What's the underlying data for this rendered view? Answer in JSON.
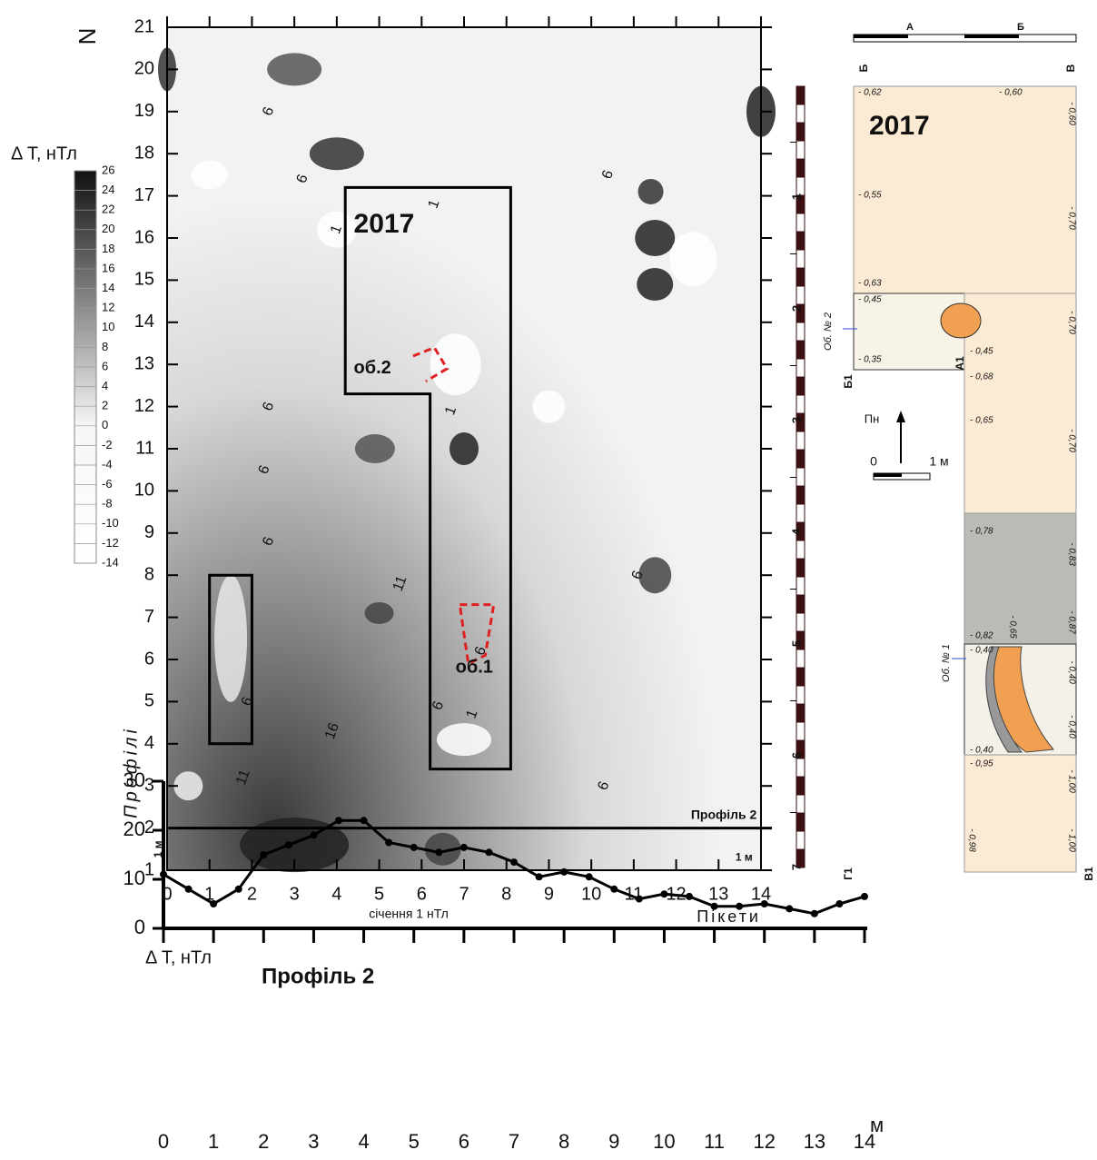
{
  "chart_data": [
    {
      "type": "contour",
      "x_label": "Пікети",
      "y_label": "Профілі",
      "note": "січення 1 нТл",
      "north": "N",
      "xlim": [
        0,
        14
      ],
      "ylim": [
        1,
        21
      ],
      "xticks": [
        0,
        1,
        2,
        3,
        4,
        5,
        6,
        7,
        8,
        9,
        10,
        11,
        12,
        13,
        14
      ],
      "yticks": [
        1,
        2,
        3,
        4,
        5,
        6,
        7,
        8,
        9,
        10,
        11,
        12,
        13,
        14,
        15,
        16,
        17,
        18,
        19,
        20,
        21
      ],
      "annotations": [
        "2017",
        "об.2",
        "об.1",
        "Профіль 2",
        "1 м",
        "1 м"
      ],
      "contour_labels": [
        "6",
        "1",
        "1",
        "6",
        "6",
        "6",
        "6",
        "11",
        "16",
        "11",
        "6",
        "6",
        "1",
        "6",
        "1",
        "6",
        "6",
        "6"
      ],
      "scale_ticks": [
        1,
        2,
        3,
        4,
        5,
        6,
        7
      ]
    },
    {
      "type": "colorbar",
      "title": "Δ T, нТл",
      "ticks": [
        26,
        24,
        22,
        20,
        18,
        16,
        14,
        12,
        10,
        8,
        6,
        4,
        2,
        0,
        -2,
        -4,
        -6,
        -8,
        -10,
        -12,
        -14
      ]
    },
    {
      "type": "line",
      "title": "Профіль 2",
      "y_label": "Δ T, нТл",
      "x_unit": "м",
      "color": "#000000",
      "x": [
        0,
        0.5,
        1,
        1.5,
        2,
        2.5,
        3,
        3.5,
        4,
        4.5,
        5,
        5.5,
        6,
        6.5,
        7,
        7.5,
        8,
        8.5,
        9,
        9.5,
        10,
        10.5,
        11,
        11.5,
        12,
        12.5,
        13,
        13.5,
        14
      ],
      "values": [
        11,
        8,
        5,
        8,
        15,
        17,
        19,
        22,
        22,
        17.5,
        16.5,
        15.5,
        16.5,
        15.5,
        13.5,
        10.5,
        11.5,
        10.5,
        8,
        6,
        7,
        6.5,
        4.5,
        4.5,
        5,
        4,
        3,
        5,
        6.5
      ],
      "xlim": [
        0,
        14
      ],
      "xticks": [
        0,
        1,
        2,
        3,
        4,
        5,
        6,
        7,
        8,
        9,
        10,
        11,
        12,
        13,
        14
      ],
      "ylim": [
        0,
        30
      ],
      "yticks": [
        0,
        10,
        20,
        30
      ]
    }
  ],
  "plan": {
    "year": "2017",
    "top_scale": [
      "А",
      "Б"
    ],
    "corner_labels": [
      "Б",
      "В",
      "Б1",
      "А1",
      "Г1",
      "В1"
    ],
    "north": "Пн",
    "scale": [
      "0",
      "1 м"
    ],
    "objects": [
      "Об. № 2",
      "Об. № 1"
    ],
    "depths": [
      "- 0,62",
      "- 0,60",
      "- 0,60",
      "- 0,55",
      "- 0,70",
      "- 0,63",
      "- 0,45",
      "- 0,45",
      "- 0,35",
      "- 0,70",
      "- 0,68",
      "- 0,65",
      "- 0,70",
      "- 0,78",
      "- 0,83",
      "- 0,87",
      "- 0,82",
      "- 0,65",
      "- 0,40",
      "- 0,40",
      "- 0,40",
      "- 0,40",
      "- 0,95",
      "- 1,00",
      "- 0,98",
      "- 1,00"
    ]
  }
}
